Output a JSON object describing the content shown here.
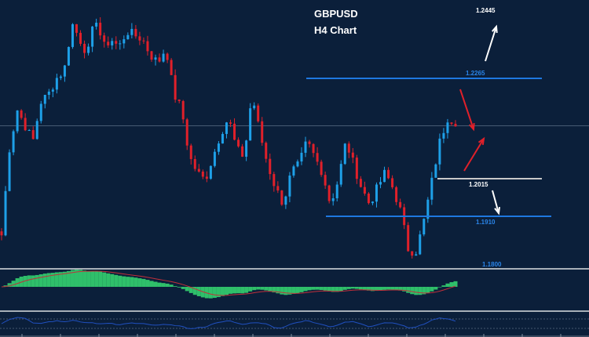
{
  "chart_data": {
    "type": "candlestick",
    "title": "GBPUSD",
    "subtitle": "H4 Chart",
    "symbol": "GBPUSD",
    "timeframe": "H4",
    "ylim": [
      1.1785,
      1.2451
    ],
    "grid": false,
    "key_closes": [
      1.1863,
      1.2079,
      1.2177,
      1.2137,
      1.2098,
      1.2196,
      1.2216,
      1.2255,
      1.2275,
      1.2392,
      1.2353,
      1.2314,
      1.2412,
      1.2333,
      1.2353,
      1.2333,
      1.2373,
      1.2363,
      1.2353,
      1.2314,
      1.2294,
      1.2333,
      1.2216,
      1.2177,
      1.2059,
      1.202,
      1.2,
      1.2059,
      1.2118,
      1.2157,
      1.2079,
      1.2059,
      1.2216,
      1.2118,
      1.2039,
      1.1981,
      1.1941,
      1.202,
      1.2039,
      1.2098,
      1.2059,
      1.202,
      1.1941,
      1.2,
      1.2098,
      1.2039,
      1.1981,
      1.1941,
      1.1981,
      1.202,
      1.1981,
      1.1922,
      1.1824,
      1.1824,
      1.1902,
      1.2,
      1.2098,
      1.2157,
      1.2147
    ],
    "current_price": 1.2137,
    "levels": [
      {
        "label": "1.2445",
        "value": 1.2445,
        "color": "#ffffff",
        "line": false
      },
      {
        "label": "1.2265",
        "value": 1.2265,
        "color": "#1e78e0",
        "line": true
      },
      {
        "label": "1.2015",
        "value": 1.2015,
        "color": "#ffffff",
        "line": true,
        "line_color": "#c8c8c8"
      },
      {
        "label": "1.1910",
        "value": 1.191,
        "color": "#1e78e0",
        "line": true
      },
      {
        "label": "1.1800",
        "value": 1.18,
        "color": "#1e78e0",
        "line": false
      }
    ],
    "arrows": [
      {
        "direction": "up",
        "color": "#ffffff",
        "target": "1.2445"
      },
      {
        "direction": "down",
        "color": "#e0202a"
      },
      {
        "direction": "up",
        "color": "#e0202a"
      },
      {
        "direction": "down",
        "color": "#ffffff",
        "target": "1.1910"
      }
    ],
    "indicators": [
      {
        "type": "macd-histogram",
        "color": "#2fbf6a",
        "signal_color": "#c0303a"
      },
      {
        "type": "oscillator-line",
        "color": "#2050c0"
      }
    ]
  },
  "colors": {
    "background": "#0b1f3a",
    "bull": "#1ea0e8",
    "bear": "#e0202a",
    "separator": "#a8b0b8"
  }
}
